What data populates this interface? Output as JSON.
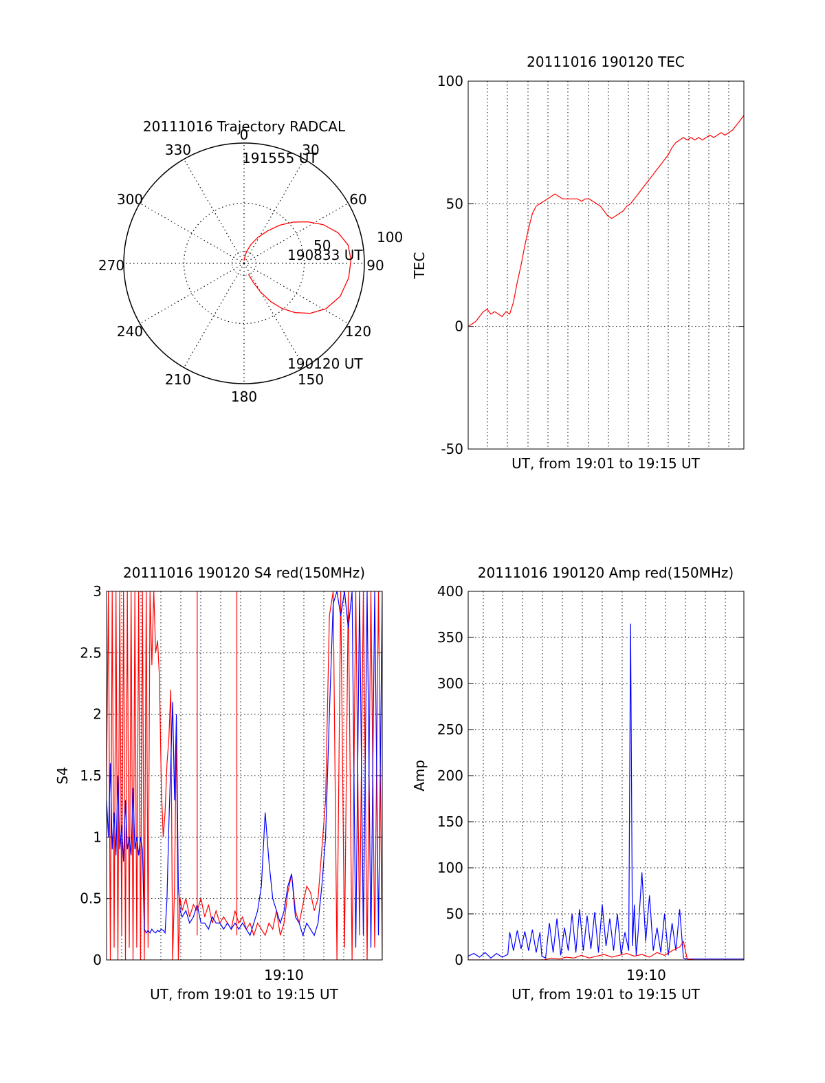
{
  "colors": {
    "red": "#ff0000",
    "blue": "#0000ff",
    "axis": "#000000",
    "grid": "#000000",
    "background": "#ffffff"
  },
  "chart_data": [
    {
      "type": "polar",
      "title": "20111016 Trajectory RADCAL",
      "azimuth_labels": [
        "0",
        "30",
        "60",
        "90",
        "120",
        "150",
        "180",
        "210",
        "240",
        "270",
        "300",
        "330"
      ],
      "elevation_ring_labels": [
        "50",
        "100"
      ],
      "time_labels": {
        "end": "191555 UT",
        "middle": "190833 UT",
        "start": "190120 UT"
      },
      "series": [
        {
          "color": "red",
          "points_az_el": [
            [
              158,
              81
            ],
            [
              154,
              74
            ],
            [
              150,
              65
            ],
            [
              145,
              55
            ],
            [
              140,
              46
            ],
            [
              134,
              37
            ],
            [
              127,
              28
            ],
            [
              119,
              20
            ],
            [
              109,
              14
            ],
            [
              98,
              11
            ],
            [
              88,
              10
            ],
            [
              80,
              11
            ],
            [
              72,
              16
            ],
            [
              64,
              24
            ],
            [
              57,
              33
            ],
            [
              50,
              42
            ],
            [
              43,
              51
            ],
            [
              36,
              60
            ],
            [
              28,
              68
            ],
            [
              20,
              75
            ],
            [
              12,
              81
            ],
            [
              5,
              86
            ],
            [
              0,
              88
            ]
          ]
        }
      ]
    },
    {
      "type": "line",
      "title": "20111016 190120 TEC",
      "xlabel": "UT, from 19:01 to 19:15 UT",
      "ylabel": "TEC",
      "xlim_minutes": [
        0,
        14.6
      ],
      "ylim": [
        -50,
        100
      ],
      "yticks": [
        "100",
        "50",
        "0",
        "-50"
      ],
      "series": [
        {
          "color": "red",
          "t": [
            0,
            0.2,
            0.4,
            0.6,
            0.8,
            1.0,
            1.2,
            1.4,
            1.6,
            1.8,
            2.0,
            2.2,
            2.4,
            2.6,
            2.8,
            3.0,
            3.2,
            3.4,
            3.6,
            3.8,
            4.0,
            4.2,
            4.4,
            4.6,
            4.8,
            5.0,
            5.2,
            5.4,
            5.6,
            5.8,
            6.0,
            6.2,
            6.4,
            6.6,
            6.8,
            7.0,
            7.2,
            7.4,
            7.6,
            7.8,
            8.0,
            8.2,
            8.4,
            8.6,
            8.8,
            9.0,
            9.2,
            9.4,
            9.6,
            9.8,
            10.0,
            10.2,
            10.4,
            10.6,
            10.8,
            11.0,
            11.2,
            11.4,
            11.6,
            11.8,
            12.0,
            12.2,
            12.4,
            12.6,
            12.8,
            13.0,
            13.2,
            13.4,
            13.6,
            13.8,
            14.0,
            14.2,
            14.4,
            14.6
          ],
          "values": [
            0,
            1,
            2,
            4,
            6,
            7,
            5,
            6,
            5,
            4,
            6,
            5,
            10,
            18,
            25,
            33,
            40,
            46,
            49,
            50,
            51,
            52,
            53,
            54,
            53,
            52,
            52,
            52,
            52,
            52,
            51,
            52,
            52,
            51,
            50,
            49,
            47,
            45,
            44,
            45,
            46,
            47,
            49,
            50,
            52,
            54,
            56,
            58,
            60,
            62,
            64,
            66,
            68,
            70,
            73,
            75,
            76,
            77,
            76,
            77,
            76,
            77,
            76,
            77,
            78,
            77,
            78,
            79,
            78,
            79,
            80,
            82,
            84,
            86
          ]
        }
      ]
    },
    {
      "type": "line",
      "title": "20111016 190120 S4 red(150MHz)",
      "xlabel": "UT, from 19:01 to 19:15 UT",
      "ylabel": "S4",
      "xtick_label": "19:10",
      "xlim_minutes": [
        0,
        14.6
      ],
      "ylim": [
        0,
        3
      ],
      "yticks": [
        "3",
        "2.5",
        "2",
        "1.5",
        "1",
        "0.5",
        "0"
      ],
      "series": [
        {
          "color": "red",
          "t": [
            0,
            0.1,
            0.2,
            0.3,
            0.4,
            0.5,
            0.6,
            0.7,
            0.8,
            0.9,
            1.0,
            1.1,
            1.2,
            1.3,
            1.4,
            1.5,
            1.6,
            1.7,
            1.8,
            1.9,
            2.0,
            2.1,
            2.2,
            2.3,
            2.4,
            2.5,
            2.6,
            2.7,
            2.8,
            2.9,
            3.0,
            3.1,
            3.2,
            3.3,
            3.4,
            3.5,
            3.6,
            3.7,
            3.8,
            3.9,
            4.0,
            4.2,
            4.4,
            4.6,
            4.8,
            5.0,
            5.2,
            5.4,
            5.6,
            5.8,
            6.0,
            6.2,
            6.4,
            6.6,
            6.8,
            7.0,
            7.2,
            7.4,
            7.6,
            7.8,
            8.0,
            8.2,
            8.4,
            8.6,
            8.8,
            9.0,
            9.2,
            9.4,
            9.6,
            9.8,
            10.0,
            10.2,
            10.4,
            10.6,
            10.8,
            11.0,
            11.2,
            11.4,
            11.6,
            11.8,
            12.0,
            12.2,
            12.4,
            12.6,
            12.8,
            13.0,
            13.2,
            13.4,
            13.6,
            13.8,
            14.0,
            14.2,
            14.4,
            14.6
          ],
          "values": [
            1.5,
            3.0,
            0.0,
            3.0,
            0.1,
            3.0,
            0.0,
            3.0,
            0.2,
            3.0,
            0.0,
            3.0,
            0.1,
            3.0,
            0.0,
            3.0,
            0.1,
            3.0,
            0.0,
            3.0,
            0.0,
            3.0,
            0.1,
            3.0,
            2.4,
            3.0,
            2.5,
            2.6,
            2.3,
            1.4,
            1.0,
            1.2,
            1.6,
            1.8,
            2.2,
            0.0,
            0.6,
            1.9,
            0.0,
            0.5,
            0.4,
            0.5,
            0.35,
            0.45,
            0.4,
            0.5,
            0.35,
            0.45,
            0.3,
            0.4,
            0.3,
            0.35,
            0.3,
            0.25,
            0.4,
            0.3,
            0.35,
            0.25,
            0.3,
            0.2,
            0.3,
            0.25,
            0.2,
            0.3,
            0.25,
            0.4,
            0.2,
            0.3,
            0.55,
            0.7,
            0.4,
            0.3,
            0.45,
            0.6,
            0.55,
            0.4,
            0.5,
            0.9,
            1.3,
            2.8,
            3.0,
            0.0,
            3.0,
            0.1,
            3.0,
            0.0,
            3.0,
            0.2,
            3.0,
            0.0,
            3.0,
            0.1,
            3.0,
            0.0
          ],
          "spikes": [
            {
              "t": 6.9,
              "value": 3.0
            },
            {
              "t": 4.8,
              "value": 3.0
            }
          ]
        },
        {
          "color": "blue",
          "t": [
            0,
            0.1,
            0.2,
            0.3,
            0.4,
            0.5,
            0.6,
            0.7,
            0.8,
            0.9,
            1.0,
            1.1,
            1.2,
            1.3,
            1.4,
            1.5,
            1.6,
            1.7,
            1.8,
            1.9,
            2.0,
            2.1,
            2.2,
            2.3,
            2.4,
            2.5,
            2.6,
            2.7,
            2.8,
            2.9,
            3.0,
            3.1,
            3.2,
            3.3,
            3.4,
            3.5,
            3.6,
            3.7,
            3.8,
            3.9,
            4.0,
            4.2,
            4.4,
            4.6,
            4.8,
            5.0,
            5.2,
            5.4,
            5.6,
            5.8,
            6.0,
            6.2,
            6.4,
            6.6,
            6.8,
            7.0,
            7.2,
            7.4,
            7.6,
            7.8,
            8.0,
            8.2,
            8.4,
            8.6,
            8.8,
            9.0,
            9.2,
            9.4,
            9.6,
            9.8,
            10.0,
            10.2,
            10.4,
            10.6,
            10.8,
            11.0,
            11.2,
            11.4,
            11.6,
            11.8,
            12.0,
            12.2,
            12.4,
            12.6,
            12.8,
            13.0,
            13.2,
            13.4,
            13.6,
            13.8,
            14.0,
            14.2,
            14.4,
            14.6
          ],
          "values": [
            1.3,
            1.0,
            1.6,
            0.9,
            1.2,
            0.85,
            1.5,
            0.9,
            1.1,
            0.8,
            1.3,
            0.9,
            1.0,
            0.85,
            1.4,
            0.9,
            1.0,
            0.85,
            1.0,
            0.9,
            0.25,
            0.22,
            0.24,
            0.22,
            0.25,
            0.23,
            0.22,
            0.24,
            0.23,
            0.25,
            0.24,
            0.22,
            0.5,
            1.1,
            1.6,
            2.1,
            1.3,
            2.0,
            0.6,
            0.4,
            0.35,
            0.4,
            0.3,
            0.35,
            0.45,
            0.3,
            0.3,
            0.25,
            0.35,
            0.3,
            0.3,
            0.25,
            0.3,
            0.25,
            0.3,
            0.25,
            0.3,
            0.25,
            0.2,
            0.3,
            0.4,
            0.6,
            1.2,
            0.8,
            0.5,
            0.4,
            0.3,
            0.4,
            0.6,
            0.7,
            0.35,
            0.3,
            0.2,
            0.3,
            0.25,
            0.2,
            0.3,
            0.6,
            1.0,
            2.0,
            2.9,
            3.0,
            2.8,
            3.0,
            2.7,
            3.0,
            0.1,
            3.0,
            0.2,
            3.0,
            0.1,
            3.0,
            0.2,
            3.0
          ]
        }
      ]
    },
    {
      "type": "line",
      "title": "20111016 190120 Amp red(150MHz)",
      "xlabel": "UT, from 19:01 to 19:15 UT",
      "ylabel": "Amp",
      "xtick_label": "19:10",
      "xlim_minutes": [
        0,
        14.6
      ],
      "ylim": [
        0,
        400
      ],
      "yticks": [
        "400",
        "350",
        "300",
        "250",
        "200",
        "150",
        "100",
        "50",
        "0"
      ],
      "series": [
        {
          "color": "blue",
          "t": [
            0,
            0.3,
            0.6,
            0.9,
            1.2,
            1.5,
            1.8,
            2.1,
            2.2,
            2.4,
            2.6,
            2.8,
            3.0,
            3.2,
            3.4,
            3.6,
            3.8,
            3.9,
            4.1,
            4.3,
            4.5,
            4.7,
            4.9,
            5.1,
            5.3,
            5.5,
            5.7,
            5.9,
            6.1,
            6.3,
            6.5,
            6.7,
            6.9,
            7.1,
            7.3,
            7.5,
            7.7,
            7.9,
            8.1,
            8.3,
            8.5,
            8.6,
            8.7,
            8.8,
            8.9,
            9.0,
            9.2,
            9.4,
            9.6,
            9.8,
            10.0,
            10.2,
            10.4,
            10.6,
            10.8,
            11.0,
            11.2,
            11.4,
            11.6,
            11.8,
            12.0,
            12.5,
            13.0,
            13.5,
            14.0,
            14.6
          ],
          "values": [
            4,
            7,
            3,
            8,
            2,
            7,
            3,
            6,
            30,
            10,
            32,
            12,
            31,
            10,
            33,
            8,
            30,
            4,
            2,
            40,
            8,
            45,
            5,
            35,
            10,
            50,
            8,
            55,
            10,
            48,
            12,
            52,
            8,
            60,
            15,
            45,
            10,
            50,
            6,
            30,
            10,
            365,
            15,
            60,
            5,
            30,
            95,
            20,
            70,
            10,
            35,
            8,
            50,
            5,
            40,
            10,
            55,
            2,
            1,
            1,
            1,
            1,
            1,
            1,
            1,
            1
          ]
        },
        {
          "color": "red",
          "t": [
            0,
            1.0,
            2.0,
            3.0,
            4.0,
            4.4,
            4.8,
            5.2,
            5.6,
            6.0,
            6.4,
            6.8,
            7.2,
            7.6,
            8.0,
            8.4,
            8.8,
            9.2,
            9.6,
            10.0,
            10.4,
            10.8,
            11.2,
            11.4,
            11.6,
            12.0,
            13.0,
            14.6
          ],
          "values": [
            0,
            0,
            0,
            0,
            0,
            2,
            1,
            3,
            2,
            5,
            2,
            4,
            6,
            3,
            5,
            7,
            4,
            6,
            3,
            8,
            5,
            10,
            14,
            20,
            1,
            0,
            0,
            0
          ]
        }
      ]
    }
  ]
}
